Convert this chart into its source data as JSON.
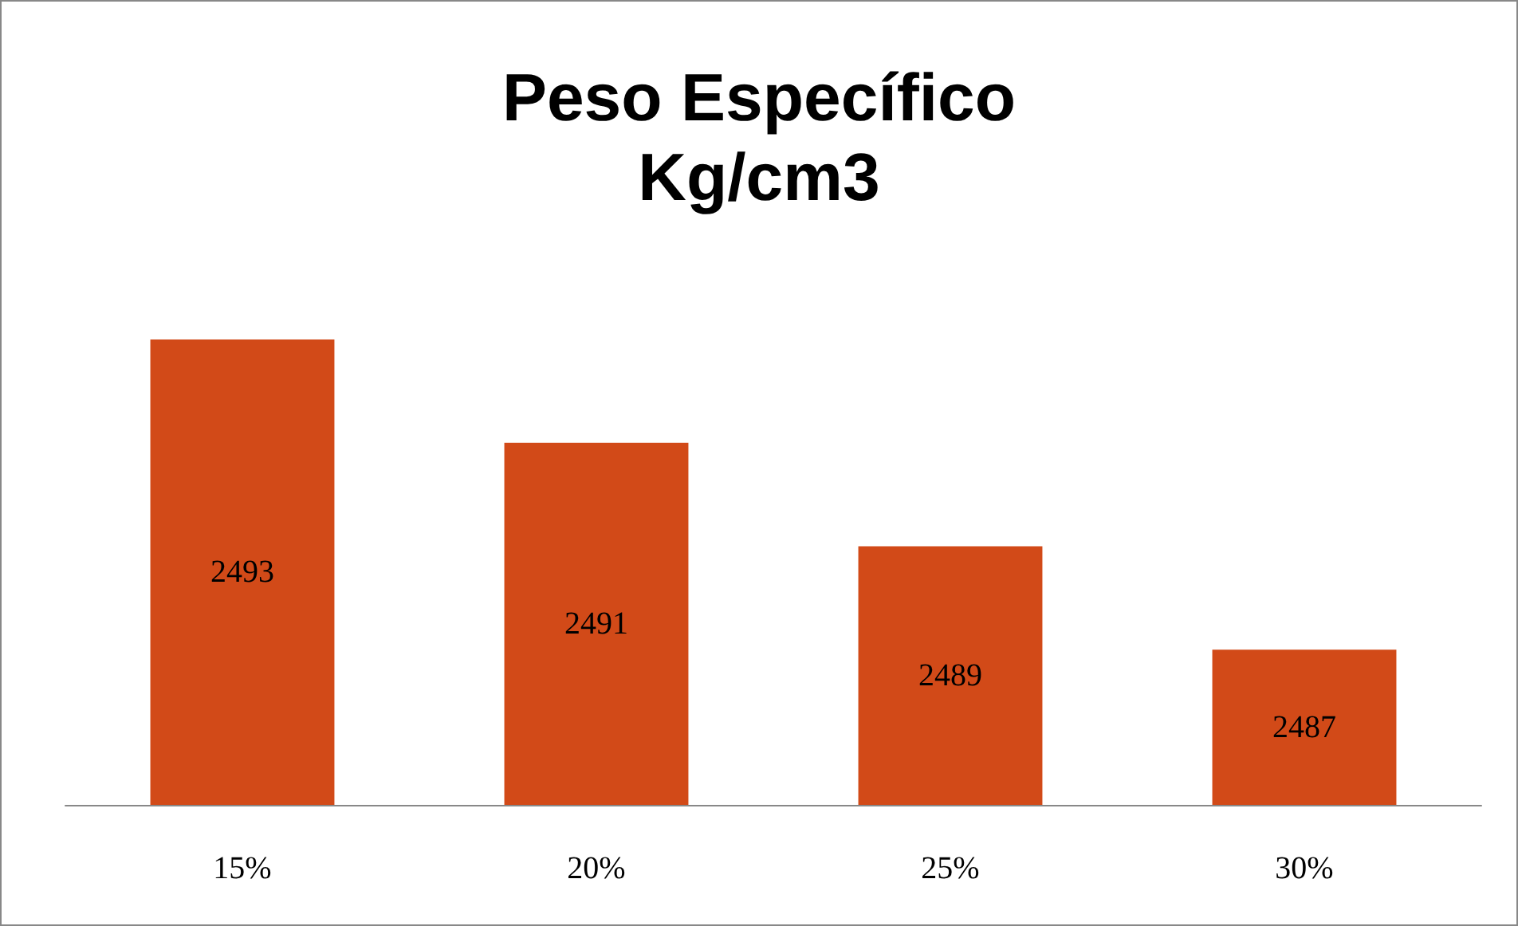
{
  "chart_data": {
    "type": "bar",
    "title": "Peso Específico\nKg/cm3",
    "categories": [
      "15%",
      "20%",
      "25%",
      "30%"
    ],
    "values": [
      2493,
      2491,
      2489,
      2487
    ],
    "color": "#d24a18",
    "ylim": [
      2484,
      2493
    ],
    "tick_labels": "x",
    "data_labels": true
  }
}
